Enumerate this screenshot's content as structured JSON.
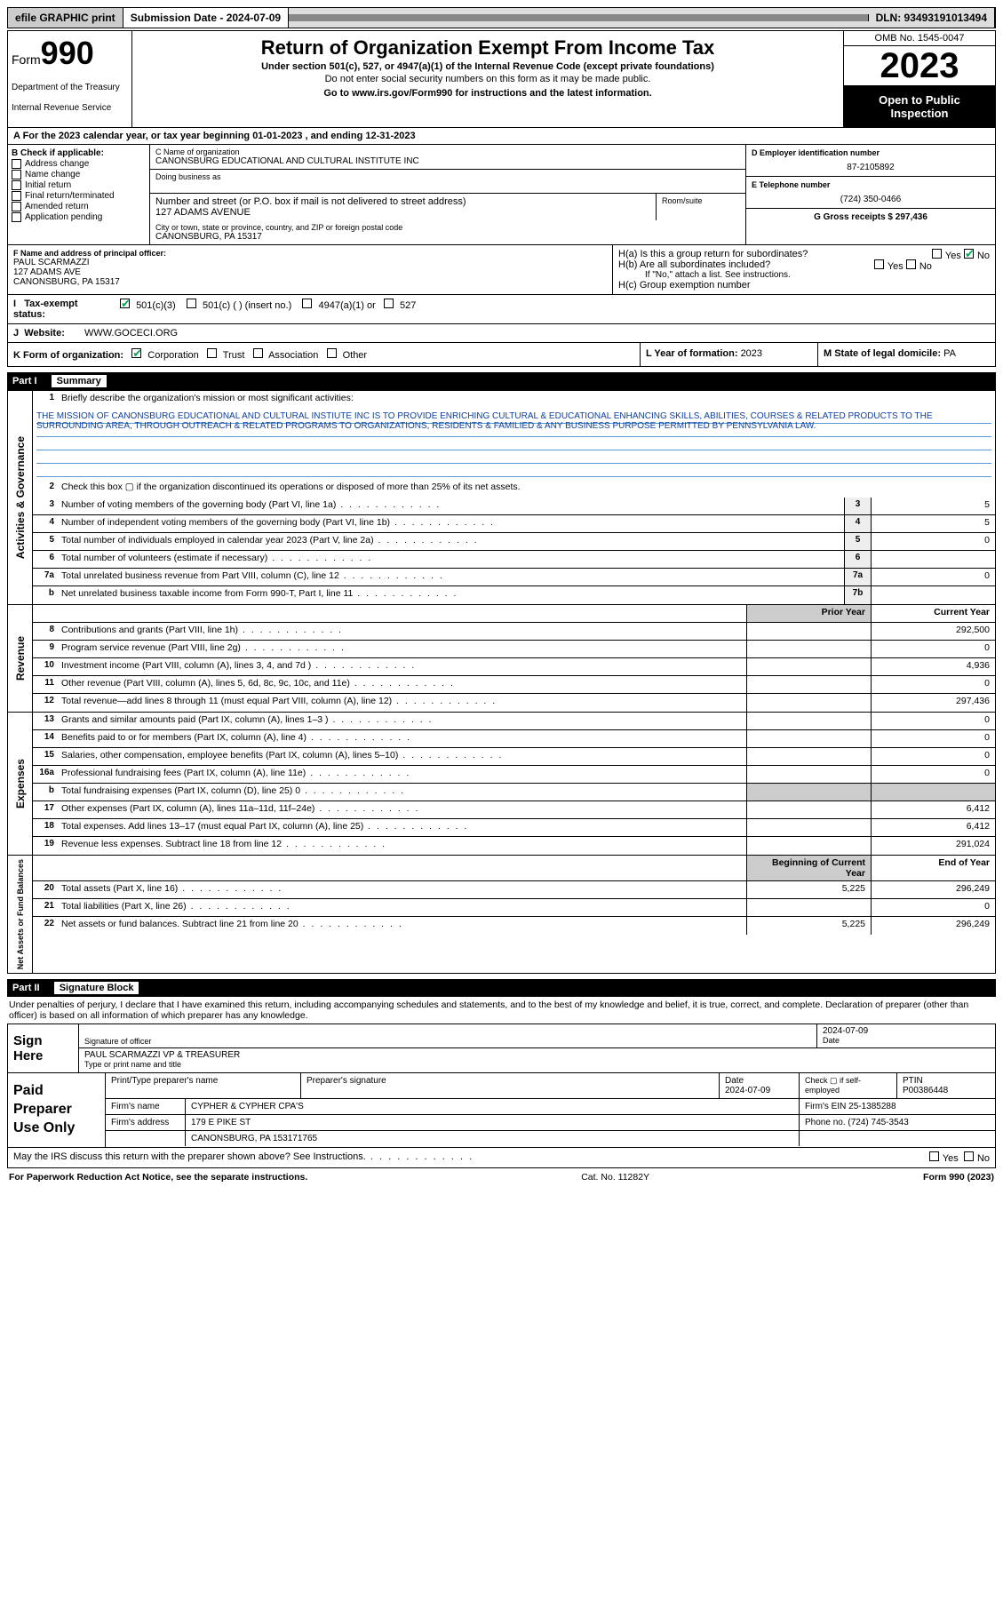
{
  "topbar": {
    "print": "efile GRAPHIC print",
    "subdate_lbl": "Submission Date - 2024-07-09",
    "dln": "DLN: 93493191013494"
  },
  "header": {
    "form_lbl": "Form",
    "form_num": "990",
    "dept": "Department of the Treasury",
    "irs": "Internal Revenue Service",
    "title": "Return of Organization Exempt From Income Tax",
    "sub1": "Under section 501(c), 527, or 4947(a)(1) of the Internal Revenue Code (except private foundations)",
    "sub2": "Do not enter social security numbers on this form as it may be made public.",
    "sub3_pre": "Go to ",
    "sub3_link": "www.irs.gov/Form990",
    "sub3_post": " for instructions and the latest information.",
    "omb": "OMB No. 1545-0047",
    "year": "2023",
    "open": "Open to Public Inspection"
  },
  "lineA": "A For the 2023 calendar year, or tax year beginning 01-01-2023    , and ending 12-31-2023",
  "colB": {
    "hdr": "B Check if applicable:",
    "items": [
      "Address change",
      "Name change",
      "Initial return",
      "Final return/terminated",
      "Amended return",
      "Application pending"
    ]
  },
  "colC": {
    "name_hint": "C Name of organization",
    "name": "CANONSBURG EDUCATIONAL AND CULTURAL INSTITUTE INC",
    "dba_hint": "Doing business as",
    "addr_hint": "Number and street (or P.O. box if mail is not delivered to street address)",
    "addr": "127 ADAMS AVENUE",
    "room_hint": "Room/suite",
    "city_hint": "City or town, state or province, country, and ZIP or foreign postal code",
    "city": "CANONSBURG, PA  15317"
  },
  "colDE": {
    "d_hint": "D Employer identification number",
    "ein": "87-2105892",
    "e_hint": "E Telephone number",
    "phone": "(724) 350-0466",
    "g": "G Gross receipts $ 297,436"
  },
  "rowF": {
    "hint": "F Name and address of principal officer:",
    "name": "PAUL SCARMAZZI",
    "addr1": "127 ADAMS AVE",
    "addr2": "CANONSBURG, PA  15317",
    "ha": "H(a)  Is this a group return for subordinates?",
    "hb": "H(b)  Are all subordinates included?",
    "hb_note": "If \"No,\" attach a list. See instructions.",
    "hc": "H(c)  Group exemption number"
  },
  "rowI": {
    "lbl": "Tax-exempt status:",
    "o1": "501(c)(3)",
    "o2": "501(c) (  ) (insert no.)",
    "o3": "4947(a)(1) or",
    "o4": "527"
  },
  "rowJ": {
    "lbl": "Website:",
    "val": "WWW.GOCECI.ORG"
  },
  "rowK": {
    "k1": "K Form of organization:",
    "opts": [
      "Corporation",
      "Trust",
      "Association",
      "Other"
    ],
    "k2_lbl": "L Year of formation: ",
    "k2_val": "2023",
    "k3_lbl": "M State of legal domicile: ",
    "k3_val": "PA"
  },
  "part1": {
    "num": "Part I",
    "title": "Summary"
  },
  "gov": {
    "side": "Activities & Governance",
    "q1_lbl": "Briefly describe the organization's mission or most significant activities:",
    "mission": "THE MISSION OF CANONSBURG EDUCATIONAL AND CULTURAL INSTIUTE INC IS TO PROVIDE ENRICHING CULTURAL & EDUCATIONAL ENHANCING SKILLS, ABILITIES, COURSES & RELATED PRODUCTS TO THE SURROUNDING AREA, THROUGH OUTREACH & RELATED PROGRAMS TO ORGANIZATIONS, RESIDENTS & FAMILIED & ANY BUSINESS PURPOSE PERMITTED BY PENNSYLVANIA LAW.",
    "q2": "Check this box  ▢  if the organization discontinued its operations or disposed of more than 25% of its net assets.",
    "rows": [
      {
        "n": "3",
        "d": "Number of voting members of the governing body (Part VI, line 1a)",
        "b": "3",
        "v": "5"
      },
      {
        "n": "4",
        "d": "Number of independent voting members of the governing body (Part VI, line 1b)",
        "b": "4",
        "v": "5"
      },
      {
        "n": "5",
        "d": "Total number of individuals employed in calendar year 2023 (Part V, line 2a)",
        "b": "5",
        "v": "0"
      },
      {
        "n": "6",
        "d": "Total number of volunteers (estimate if necessary)",
        "b": "6",
        "v": ""
      },
      {
        "n": "7a",
        "d": "Total unrelated business revenue from Part VIII, column (C), line 12",
        "b": "7a",
        "v": "0"
      },
      {
        "n": "b",
        "d": "Net unrelated business taxable income from Form 990-T, Part I, line 11",
        "b": "7b",
        "v": ""
      }
    ]
  },
  "rev": {
    "side": "Revenue",
    "hdr_prior": "Prior Year",
    "hdr_curr": "Current Year",
    "rows": [
      {
        "n": "8",
        "d": "Contributions and grants (Part VIII, line 1h)",
        "p": "",
        "c": "292,500"
      },
      {
        "n": "9",
        "d": "Program service revenue (Part VIII, line 2g)",
        "p": "",
        "c": "0"
      },
      {
        "n": "10",
        "d": "Investment income (Part VIII, column (A), lines 3, 4, and 7d )",
        "p": "",
        "c": "4,936"
      },
      {
        "n": "11",
        "d": "Other revenue (Part VIII, column (A), lines 5, 6d, 8c, 9c, 10c, and 11e)",
        "p": "",
        "c": "0"
      },
      {
        "n": "12",
        "d": "Total revenue—add lines 8 through 11 (must equal Part VIII, column (A), line 12)",
        "p": "",
        "c": "297,436"
      }
    ]
  },
  "exp": {
    "side": "Expenses",
    "rows": [
      {
        "n": "13",
        "d": "Grants and similar amounts paid (Part IX, column (A), lines 1–3 )",
        "p": "",
        "c": "0"
      },
      {
        "n": "14",
        "d": "Benefits paid to or for members (Part IX, column (A), line 4)",
        "p": "",
        "c": "0"
      },
      {
        "n": "15",
        "d": "Salaries, other compensation, employee benefits (Part IX, column (A), lines 5–10)",
        "p": "",
        "c": "0"
      },
      {
        "n": "16a",
        "d": "Professional fundraising fees (Part IX, column (A), line 11e)",
        "p": "",
        "c": "0"
      },
      {
        "n": "b",
        "d": "Total fundraising expenses (Part IX, column (D), line 25) 0",
        "p": "grey",
        "c": "grey"
      },
      {
        "n": "17",
        "d": "Other expenses (Part IX, column (A), lines 11a–11d, 11f–24e)",
        "p": "",
        "c": "6,412"
      },
      {
        "n": "18",
        "d": "Total expenses. Add lines 13–17 (must equal Part IX, column (A), line 25)",
        "p": "",
        "c": "6,412"
      },
      {
        "n": "19",
        "d": "Revenue less expenses. Subtract line 18 from line 12",
        "p": "",
        "c": "291,024"
      }
    ]
  },
  "net": {
    "side": "Net Assets or Fund Balances",
    "hdr_beg": "Beginning of Current Year",
    "hdr_end": "End of Year",
    "rows": [
      {
        "n": "20",
        "d": "Total assets (Part X, line 16)",
        "p": "5,225",
        "c": "296,249"
      },
      {
        "n": "21",
        "d": "Total liabilities (Part X, line 26)",
        "p": "",
        "c": "0"
      },
      {
        "n": "22",
        "d": "Net assets or fund balances. Subtract line 21 from line 20",
        "p": "5,225",
        "c": "296,249"
      }
    ]
  },
  "part2": {
    "num": "Part II",
    "title": "Signature Block"
  },
  "sig": {
    "declare": "Under penalties of perjury, I declare that I have examined this return, including accompanying schedules and statements, and to the best of my knowledge and belief, it is true, correct, and complete. Declaration of preparer (other than officer) is based on all information of which preparer has any knowledge.",
    "sign_here": "Sign Here",
    "sig_hint": "Signature of officer",
    "date": "2024-07-09",
    "date_hint": "Date",
    "name": "PAUL SCARMAZZI VP & TREASURER",
    "name_hint": "Type or print name and title"
  },
  "prep": {
    "lbl": "Paid Preparer Use Only",
    "r1": {
      "c1_hint": "Print/Type preparer's name",
      "c2_hint": "Preparer's signature",
      "c3_hint": "Date",
      "c3": "2024-07-09",
      "c4": "Check ▢ if self-employed",
      "c5_hint": "PTIN",
      "c5": "P00386448"
    },
    "r2": {
      "lbl": "Firm's name",
      "val": "CYPHER & CYPHER CPA'S",
      "ein_lbl": "Firm's EIN",
      "ein": "25-1385288"
    },
    "r3": {
      "lbl": "Firm's address",
      "val": "179 E PIKE ST",
      "ph_lbl": "Phone no.",
      "ph": "(724) 745-3543"
    },
    "r4": "CANONSBURG, PA  153171765"
  },
  "discuss": "May the IRS discuss this return with the preparer shown above? See Instructions.",
  "footer": {
    "l": "For Paperwork Reduction Act Notice, see the separate instructions.",
    "c": "Cat. No. 11282Y",
    "r": "Form 990 (2023)"
  },
  "txt": {
    "yes": "Yes",
    "no": "No"
  }
}
